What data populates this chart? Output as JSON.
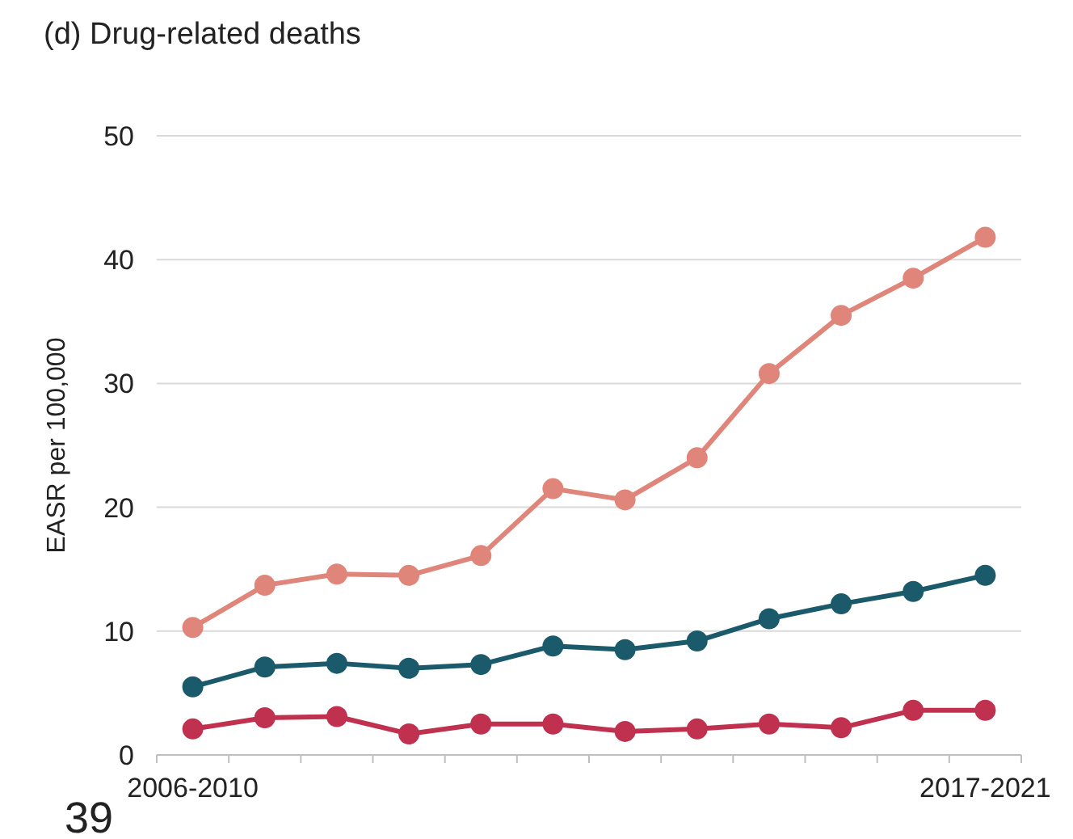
{
  "chart_data": {
    "type": "line",
    "title": "(d) Drug-related deaths",
    "ylabel": "EASR per 100,000",
    "categories": [
      "2006-2010",
      null,
      null,
      null,
      null,
      null,
      null,
      null,
      null,
      null,
      null,
      "2017-2021"
    ],
    "series": [
      {
        "color": "#e0857a",
        "values": [
          10.3,
          13.7,
          14.6,
          14.5,
          16.1,
          21.5,
          20.6,
          24.0,
          30.8,
          35.5,
          38.5,
          41.8
        ]
      },
      {
        "color": "#1b5a6b",
        "values": [
          5.5,
          7.1,
          7.4,
          7.0,
          7.3,
          8.8,
          8.5,
          9.2,
          11.0,
          12.2,
          13.2,
          14.5
        ]
      },
      {
        "color": "#c0304f",
        "values": [
          2.1,
          3.0,
          3.1,
          1.7,
          2.5,
          2.5,
          1.9,
          2.1,
          2.5,
          2.2,
          3.6,
          3.6
        ]
      }
    ],
    "ylim": [
      0,
      50
    ],
    "yticks": [
      0,
      10,
      20,
      30,
      40,
      50
    ],
    "grid": "y",
    "marker": "circle",
    "line_style": "solid",
    "annotations": [
      "39"
    ]
  }
}
